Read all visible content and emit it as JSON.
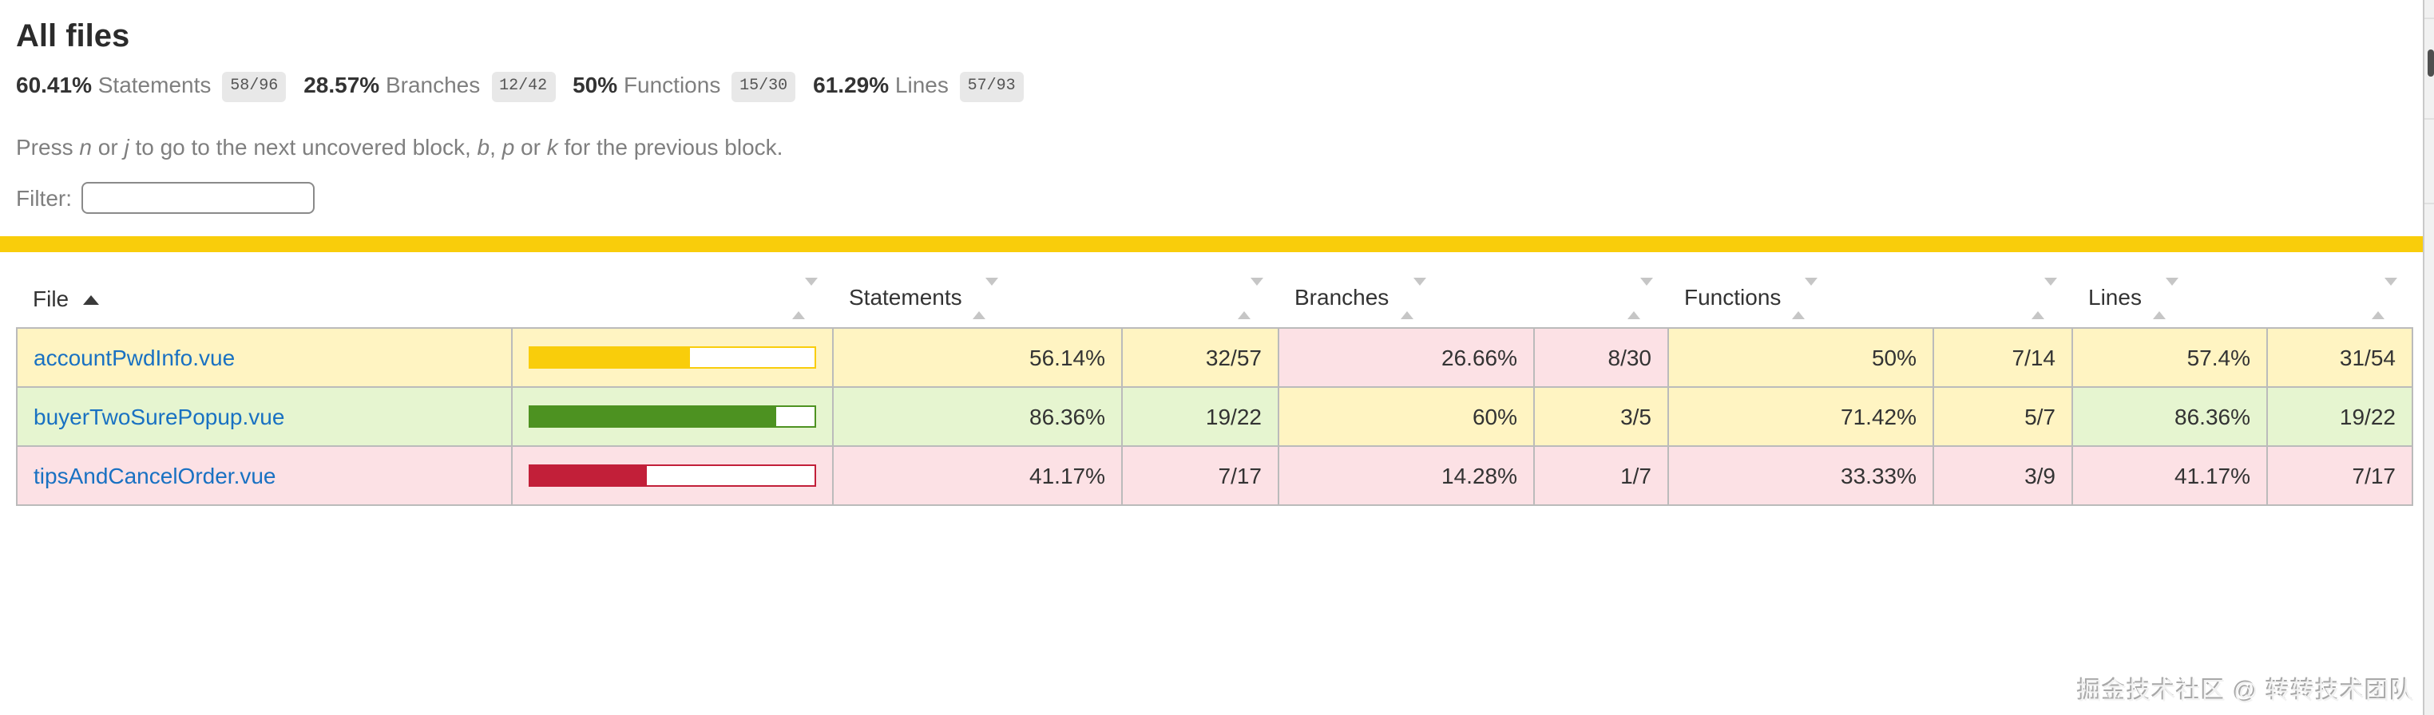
{
  "page": {
    "heading": "All files",
    "watermark": "掘金技术社区 @ 转转技术团队"
  },
  "summary": {
    "metrics": [
      {
        "pct": "60.41%",
        "label": "Statements",
        "fraction": "58/96"
      },
      {
        "pct": "28.57%",
        "label": "Branches",
        "fraction": "12/42"
      },
      {
        "pct": "50%",
        "label": "Functions",
        "fraction": "15/30"
      },
      {
        "pct": "61.29%",
        "label": "Lines",
        "fraction": "57/93"
      }
    ]
  },
  "hint": {
    "t1": "Press ",
    "k1": "n",
    "t2": " or ",
    "k2": "j",
    "t3": " to go to the next uncovered block, ",
    "k3": "b",
    "t4": ", ",
    "k4": "p",
    "t5": " or ",
    "k5": "k",
    "t6": " for the previous block."
  },
  "filter": {
    "label": "Filter:",
    "value": ""
  },
  "status": {
    "level": "medium",
    "color": "#f9cd0b"
  },
  "table": {
    "headers": {
      "file": "File",
      "statements": "Statements",
      "branches": "Branches",
      "functions": "Functions",
      "lines": "Lines"
    },
    "sort": {
      "column": "file",
      "direction": "asc"
    },
    "rows": [
      {
        "file": "accountPwdInfo.vue",
        "level": "medium",
        "bar_pct": 56.14,
        "statements_pct": "56.14%",
        "statements_abs": "32/57",
        "statements_level": "medium",
        "branches_pct": "26.66%",
        "branches_abs": "8/30",
        "branches_level": "low",
        "functions_pct": "50%",
        "functions_abs": "7/14",
        "functions_level": "medium",
        "lines_pct": "57.4%",
        "lines_abs": "31/54",
        "lines_level": "medium"
      },
      {
        "file": "buyerTwoSurePopup.vue",
        "level": "high",
        "bar_pct": 86.36,
        "statements_pct": "86.36%",
        "statements_abs": "19/22",
        "statements_level": "high",
        "branches_pct": "60%",
        "branches_abs": "3/5",
        "branches_level": "medium",
        "functions_pct": "71.42%",
        "functions_abs": "5/7",
        "functions_level": "medium",
        "lines_pct": "86.36%",
        "lines_abs": "19/22",
        "lines_level": "high"
      },
      {
        "file": "tipsAndCancelOrder.vue",
        "level": "low",
        "bar_pct": 41.17,
        "statements_pct": "41.17%",
        "statements_abs": "7/17",
        "statements_level": "low",
        "branches_pct": "14.28%",
        "branches_abs": "1/7",
        "branches_level": "low",
        "functions_pct": "33.33%",
        "functions_abs": "3/9",
        "functions_level": "low",
        "lines_pct": "41.17%",
        "lines_abs": "7/17",
        "lines_level": "low"
      }
    ]
  },
  "colors": {
    "low_bg": "#fce1e5",
    "medium_bg": "#fff4c2",
    "high_bg": "#e6f5d0",
    "low_fill": "#c21f39",
    "medium_fill": "#f9cd0b",
    "high_fill": "#4d9221",
    "status_line": "#f9cd0b",
    "link": "#1971c2",
    "quiet": "#7f7f7f",
    "fraction_bg": "#e8e8e8"
  }
}
